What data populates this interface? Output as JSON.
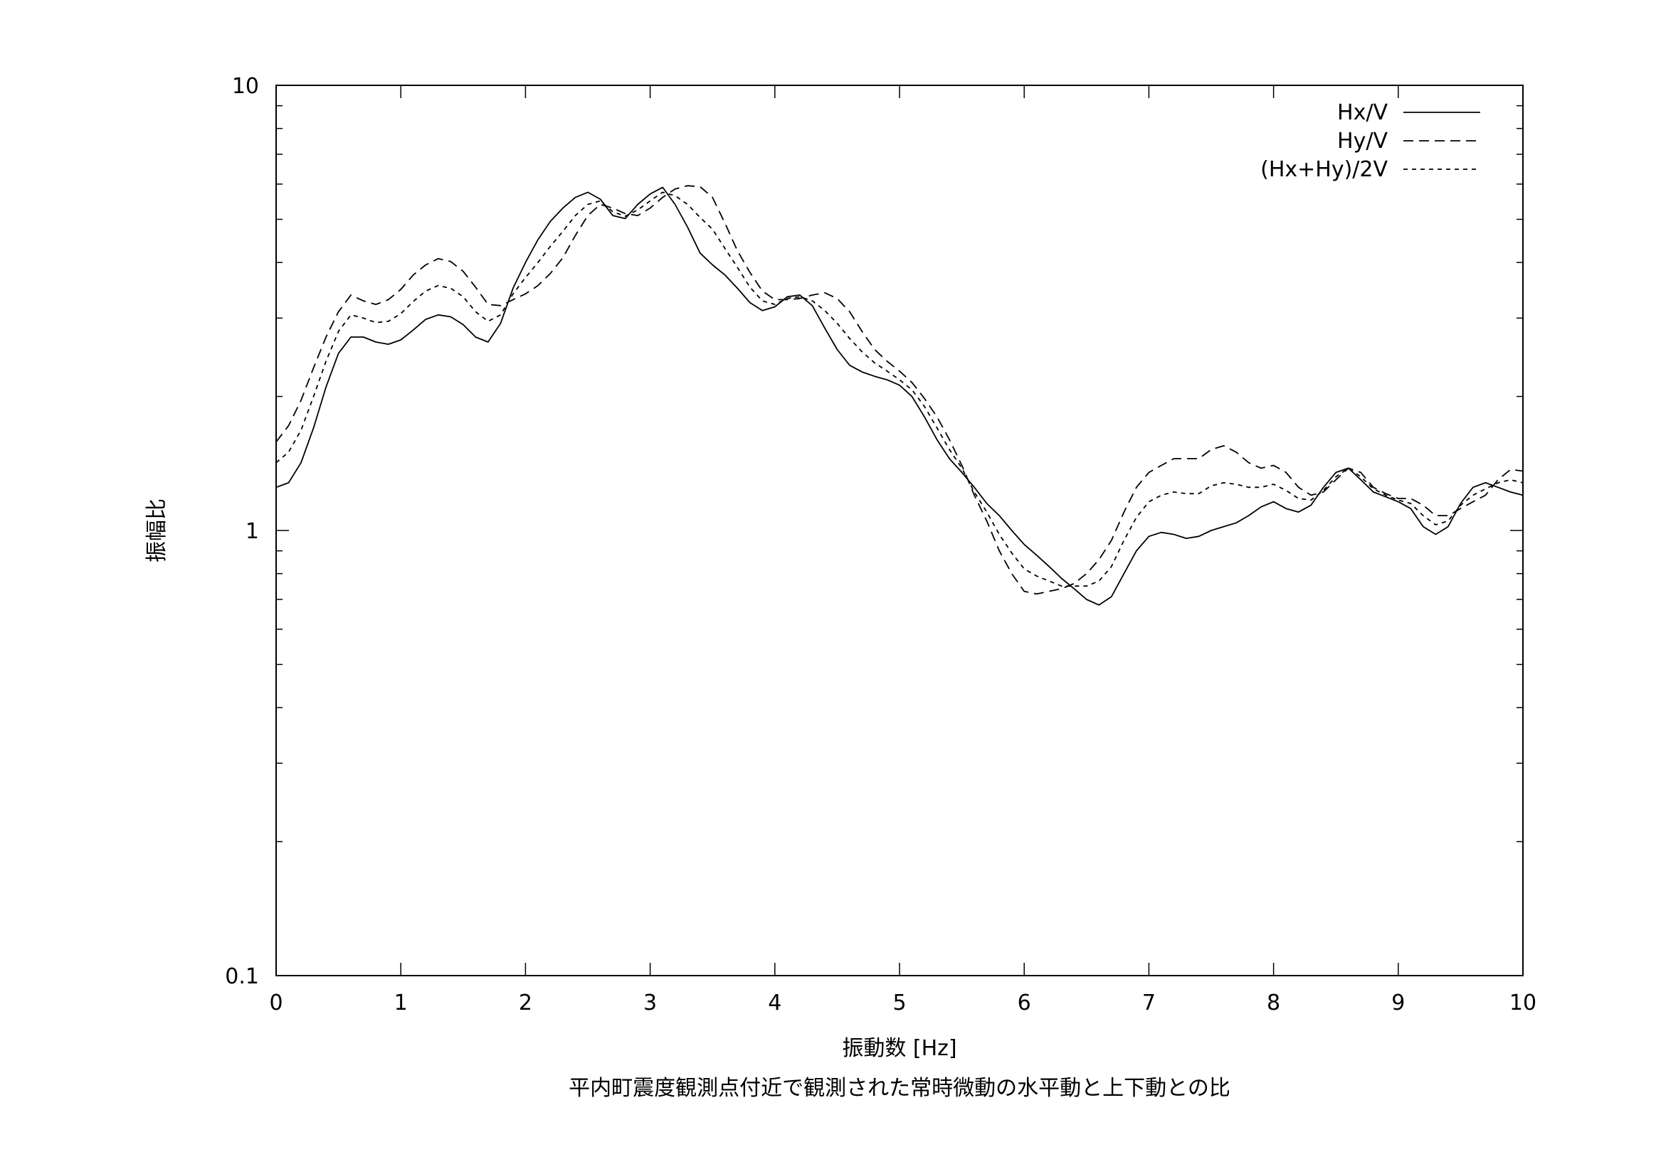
{
  "caption": "平内町震度観測点付近で観測された常時微動の水平動と上下動との比",
  "colors": {
    "background": "#ffffff",
    "ink": "#000000"
  },
  "chart_data": {
    "type": "line",
    "title": "",
    "xlabel": "振動数 [Hz]",
    "ylabel": "振幅比",
    "xlim": [
      0,
      10
    ],
    "ylim": [
      0.1,
      10
    ],
    "yscale": "log",
    "xticks": [
      0,
      1,
      2,
      3,
      4,
      5,
      6,
      7,
      8,
      9,
      10
    ],
    "xtick_labels": [
      "0",
      "1",
      "2",
      "3",
      "4",
      "5",
      "6",
      "7",
      "8",
      "9",
      "10"
    ],
    "yticks": [
      0.1,
      1,
      10
    ],
    "ytick_labels": [
      "0.1",
      "1",
      "10"
    ],
    "grid": false,
    "legend_position": "top-right",
    "x": [
      0,
      0.1,
      0.2,
      0.3,
      0.4,
      0.5,
      0.6,
      0.7,
      0.8,
      0.9,
      1.0,
      1.1,
      1.2,
      1.3,
      1.4,
      1.5,
      1.6,
      1.7,
      1.8,
      1.9,
      2.0,
      2.1,
      2.2,
      2.3,
      2.4,
      2.5,
      2.6,
      2.7,
      2.8,
      2.9,
      3.0,
      3.1,
      3.2,
      3.3,
      3.4,
      3.5,
      3.6,
      3.7,
      3.8,
      3.9,
      4.0,
      4.1,
      4.2,
      4.3,
      4.4,
      4.5,
      4.6,
      4.7,
      4.8,
      4.9,
      5.0,
      5.1,
      5.2,
      5.3,
      5.4,
      5.5,
      5.6,
      5.7,
      5.8,
      5.9,
      6.0,
      6.1,
      6.2,
      6.3,
      6.4,
      6.5,
      6.6,
      6.7,
      6.8,
      6.9,
      7.0,
      7.1,
      7.2,
      7.3,
      7.4,
      7.5,
      7.6,
      7.7,
      7.8,
      7.9,
      8.0,
      8.1,
      8.2,
      8.3,
      8.4,
      8.5,
      8.6,
      8.7,
      8.8,
      8.9,
      9.0,
      9.1,
      9.2,
      9.3,
      9.4,
      9.5,
      9.6,
      9.7,
      9.8,
      9.9,
      10.0
    ],
    "series": [
      {
        "name": "Hx/V",
        "dash": "solid",
        "values": [
          1.25,
          1.28,
          1.42,
          1.7,
          2.1,
          2.5,
          2.72,
          2.72,
          2.65,
          2.62,
          2.68,
          2.82,
          2.98,
          3.05,
          3.02,
          2.9,
          2.72,
          2.65,
          2.92,
          3.5,
          4.0,
          4.5,
          4.95,
          5.3,
          5.6,
          5.75,
          5.55,
          5.1,
          5.02,
          5.4,
          5.7,
          5.9,
          5.4,
          4.8,
          4.2,
          3.95,
          3.75,
          3.5,
          3.25,
          3.12,
          3.18,
          3.35,
          3.38,
          3.2,
          2.85,
          2.55,
          2.35,
          2.27,
          2.22,
          2.18,
          2.12,
          2.0,
          1.8,
          1.6,
          1.45,
          1.35,
          1.25,
          1.15,
          1.08,
          1.0,
          0.93,
          0.88,
          0.83,
          0.78,
          0.74,
          0.7,
          0.68,
          0.71,
          0.8,
          0.9,
          0.97,
          0.99,
          0.98,
          0.96,
          0.97,
          1.0,
          1.02,
          1.04,
          1.08,
          1.13,
          1.16,
          1.12,
          1.1,
          1.14,
          1.25,
          1.35,
          1.38,
          1.3,
          1.22,
          1.19,
          1.16,
          1.12,
          1.02,
          0.98,
          1.02,
          1.15,
          1.25,
          1.28,
          1.25,
          1.22,
          1.2
        ]
      },
      {
        "name": "Hy/V",
        "dash": "long",
        "values": [
          1.58,
          1.72,
          1.96,
          2.32,
          2.72,
          3.1,
          3.38,
          3.28,
          3.22,
          3.3,
          3.48,
          3.75,
          3.95,
          4.08,
          4.02,
          3.82,
          3.52,
          3.22,
          3.2,
          3.3,
          3.4,
          3.55,
          3.78,
          4.1,
          4.6,
          5.1,
          5.4,
          5.3,
          5.15,
          5.1,
          5.3,
          5.6,
          5.85,
          5.95,
          5.92,
          5.6,
          4.9,
          4.25,
          3.8,
          3.45,
          3.3,
          3.3,
          3.32,
          3.38,
          3.42,
          3.32,
          3.1,
          2.8,
          2.55,
          2.4,
          2.28,
          2.15,
          1.98,
          1.8,
          1.6,
          1.4,
          1.2,
          1.05,
          0.9,
          0.8,
          0.73,
          0.72,
          0.73,
          0.74,
          0.76,
          0.8,
          0.86,
          0.95,
          1.1,
          1.25,
          1.35,
          1.4,
          1.45,
          1.45,
          1.45,
          1.52,
          1.55,
          1.5,
          1.42,
          1.38,
          1.4,
          1.35,
          1.25,
          1.2,
          1.22,
          1.3,
          1.38,
          1.35,
          1.25,
          1.21,
          1.18,
          1.18,
          1.14,
          1.08,
          1.08,
          1.12,
          1.16,
          1.2,
          1.3,
          1.37,
          1.36
        ]
      },
      {
        "name": "(Hx+Hy)/2V",
        "dash": "short",
        "values": [
          1.42,
          1.5,
          1.68,
          2.0,
          2.4,
          2.8,
          3.05,
          3.0,
          2.93,
          2.95,
          3.07,
          3.27,
          3.45,
          3.55,
          3.5,
          3.35,
          3.1,
          2.95,
          3.05,
          3.4,
          3.7,
          4.0,
          4.35,
          4.7,
          5.1,
          5.4,
          5.5,
          5.2,
          5.08,
          5.25,
          5.5,
          5.75,
          5.65,
          5.4,
          5.05,
          4.75,
          4.3,
          3.9,
          3.52,
          3.28,
          3.22,
          3.32,
          3.35,
          3.28,
          3.12,
          2.92,
          2.7,
          2.52,
          2.38,
          2.28,
          2.18,
          2.07,
          1.9,
          1.7,
          1.52,
          1.38,
          1.22,
          1.1,
          0.98,
          0.89,
          0.82,
          0.79,
          0.77,
          0.75,
          0.75,
          0.75,
          0.77,
          0.83,
          0.95,
          1.07,
          1.16,
          1.2,
          1.22,
          1.21,
          1.21,
          1.26,
          1.28,
          1.27,
          1.25,
          1.25,
          1.27,
          1.23,
          1.18,
          1.17,
          1.23,
          1.32,
          1.38,
          1.32,
          1.24,
          1.2,
          1.17,
          1.15,
          1.08,
          1.03,
          1.05,
          1.14,
          1.2,
          1.24,
          1.28,
          1.3,
          1.28
        ]
      }
    ]
  }
}
